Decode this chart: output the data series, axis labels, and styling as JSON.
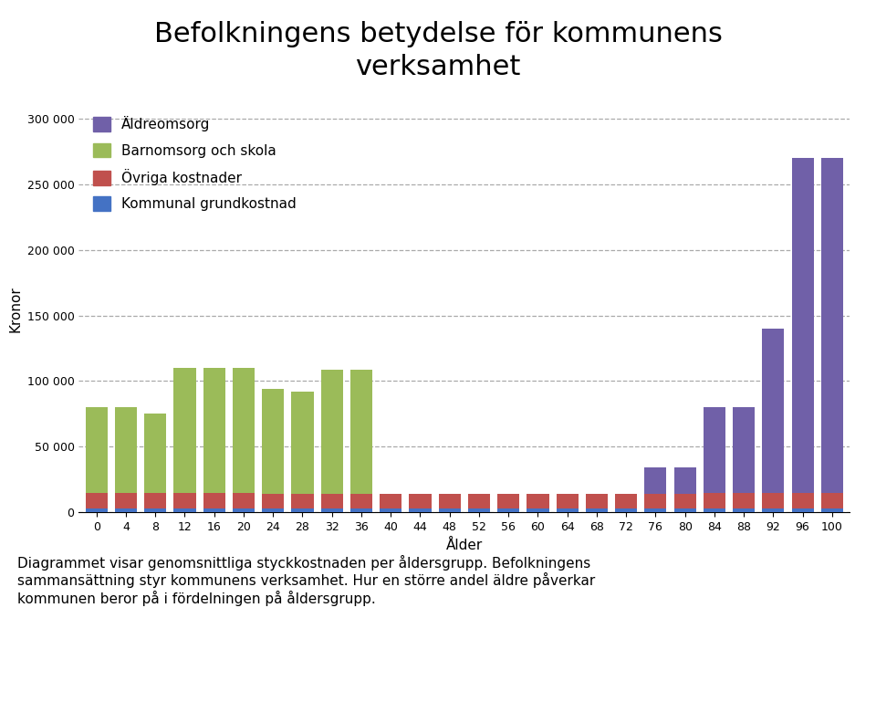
{
  "title": "Befolkningens betydelse för kommunens\nverksamhet",
  "ylabel": "Kronor",
  "xlabel": "Ålder",
  "caption": "Diagrammet visar genomsnittliga styckkostnaden per åldersgrupp. Befolkningens\nsammansättning styr kommunens verksamhet. Hur en större andel äldre påverkar\nkommunen beror på i fördelningen på åldersgrupp.",
  "ages": [
    0,
    4,
    8,
    12,
    16,
    20,
    24,
    28,
    32,
    36,
    40,
    44,
    48,
    52,
    56,
    60,
    64,
    68,
    72,
    76,
    80,
    84,
    88,
    92,
    96,
    100
  ],
  "series": {
    "Kommunal grundkostnad": {
      "color": "#4472C4",
      "values": [
        3000,
        3000,
        3000,
        3000,
        3000,
        3000,
        3000,
        3000,
        3000,
        3000,
        3000,
        3000,
        3000,
        3000,
        3000,
        3000,
        3000,
        3000,
        3000,
        3000,
        3000,
        3000,
        3000,
        3000,
        3000,
        3000
      ]
    },
    "Övriga kostnader": {
      "color": "#C0504D",
      "values": [
        12000,
        12000,
        12000,
        12000,
        12000,
        12000,
        11000,
        11000,
        11000,
        11000,
        11000,
        11000,
        11000,
        11000,
        11000,
        11000,
        11000,
        11000,
        11000,
        11000,
        11000,
        12000,
        12000,
        12000,
        12000,
        12000
      ]
    },
    "Barnomsorg och skola": {
      "color": "#9BBB59",
      "values": [
        65000,
        65000,
        60000,
        95000,
        95000,
        95000,
        80000,
        78000,
        95000,
        95000,
        0,
        0,
        0,
        0,
        0,
        0,
        0,
        0,
        0,
        0,
        0,
        0,
        0,
        0,
        0,
        0
      ]
    },
    "Äldreomsorg": {
      "color": "#7060A8",
      "values": [
        0,
        0,
        0,
        0,
        0,
        0,
        0,
        0,
        0,
        0,
        0,
        0,
        0,
        0,
        0,
        0,
        0,
        0,
        0,
        20000,
        20000,
        65000,
        65000,
        125000,
        255000,
        255000
      ]
    }
  },
  "ylim": [
    0,
    310000
  ],
  "yticks": [
    0,
    50000,
    100000,
    150000,
    200000,
    250000,
    300000
  ],
  "ytick_labels": [
    "0",
    "50 000",
    "100 000",
    "150 000",
    "200 000",
    "250 000",
    "300 000"
  ],
  "background_color": "#FFFFFF",
  "grid_color": "#AAAAAA",
  "title_fontsize": 22,
  "axis_label_fontsize": 11,
  "tick_fontsize": 9,
  "legend_fontsize": 11,
  "caption_fontsize": 11
}
